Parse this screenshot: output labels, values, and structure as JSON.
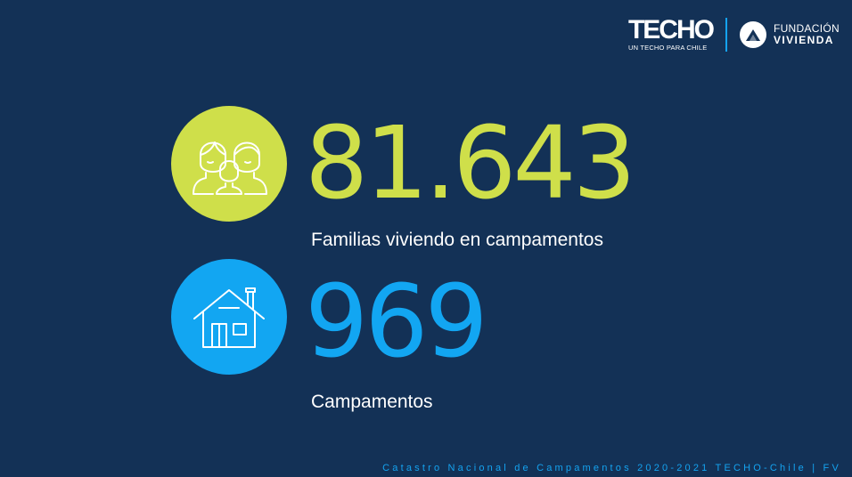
{
  "header": {
    "techo_logo": "TECHO",
    "techo_tagline": "UN TECHO PARA CHILE",
    "fv_line1": "FUNDACIÓN",
    "fv_line2": "VIVIENDA"
  },
  "stats": [
    {
      "value": "81.643",
      "label": "Familias viviendo en campamentos",
      "icon": "family-icon",
      "color": "#cfdf4a"
    },
    {
      "value": "969",
      "label": "Campamentos",
      "icon": "house-icon",
      "color": "#12a6f2"
    }
  ],
  "footer": {
    "text": "Catastro Nacional de Campamentos 2020-2021 TECHO-Chile | FV"
  },
  "colors": {
    "background": "#133156",
    "accent_green": "#cfdf4a",
    "accent_blue": "#12a6f2"
  }
}
